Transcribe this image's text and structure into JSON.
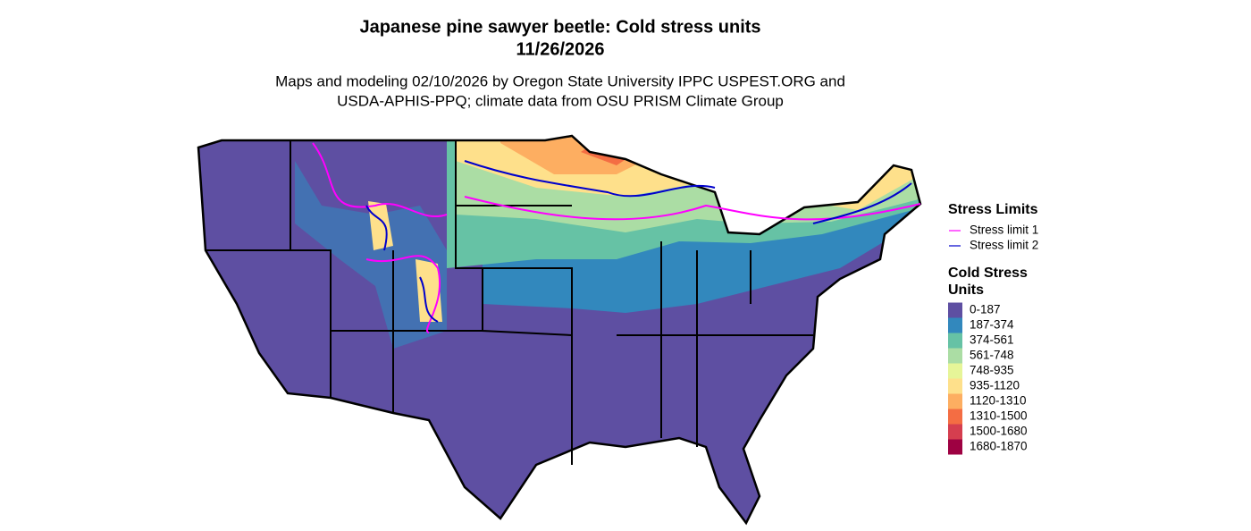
{
  "header": {
    "title": [
      "Japanese pine sawyer beetle: Cold stress units",
      "11/26/2026"
    ],
    "subtitle": [
      "Maps and modeling 02/10/2026 by Oregon State University IPPC USPEST.ORG and",
      "USDA-APHIS-PPQ; climate data from OSU PRISM Climate Group"
    ]
  },
  "legend": {
    "limits": {
      "title": "Stress Limits",
      "items": [
        {
          "label": "Stress limit 1",
          "color": "#ff00ff"
        },
        {
          "label": "Stress limit 2",
          "color": "#0000cc"
        }
      ]
    },
    "units": {
      "title": [
        "Cold Stress",
        "Units"
      ],
      "items": [
        {
          "label": "0-187",
          "color": "#5e4fa2"
        },
        {
          "label": "187-374",
          "color": "#3288bd"
        },
        {
          "label": "374-561",
          "color": "#66c2a5"
        },
        {
          "label": "561-748",
          "color": "#abdda4"
        },
        {
          "label": "748-935",
          "color": "#e6f598"
        },
        {
          "label": "935-1120",
          "color": "#fee08b"
        },
        {
          "label": "1120-1310",
          "color": "#fdae61"
        },
        {
          "label": "1310-1500",
          "color": "#f46d43"
        },
        {
          "label": "1500-1680",
          "color": "#d53e4f"
        },
        {
          "label": "1680-1870",
          "color": "#9e0142"
        }
      ]
    }
  }
}
